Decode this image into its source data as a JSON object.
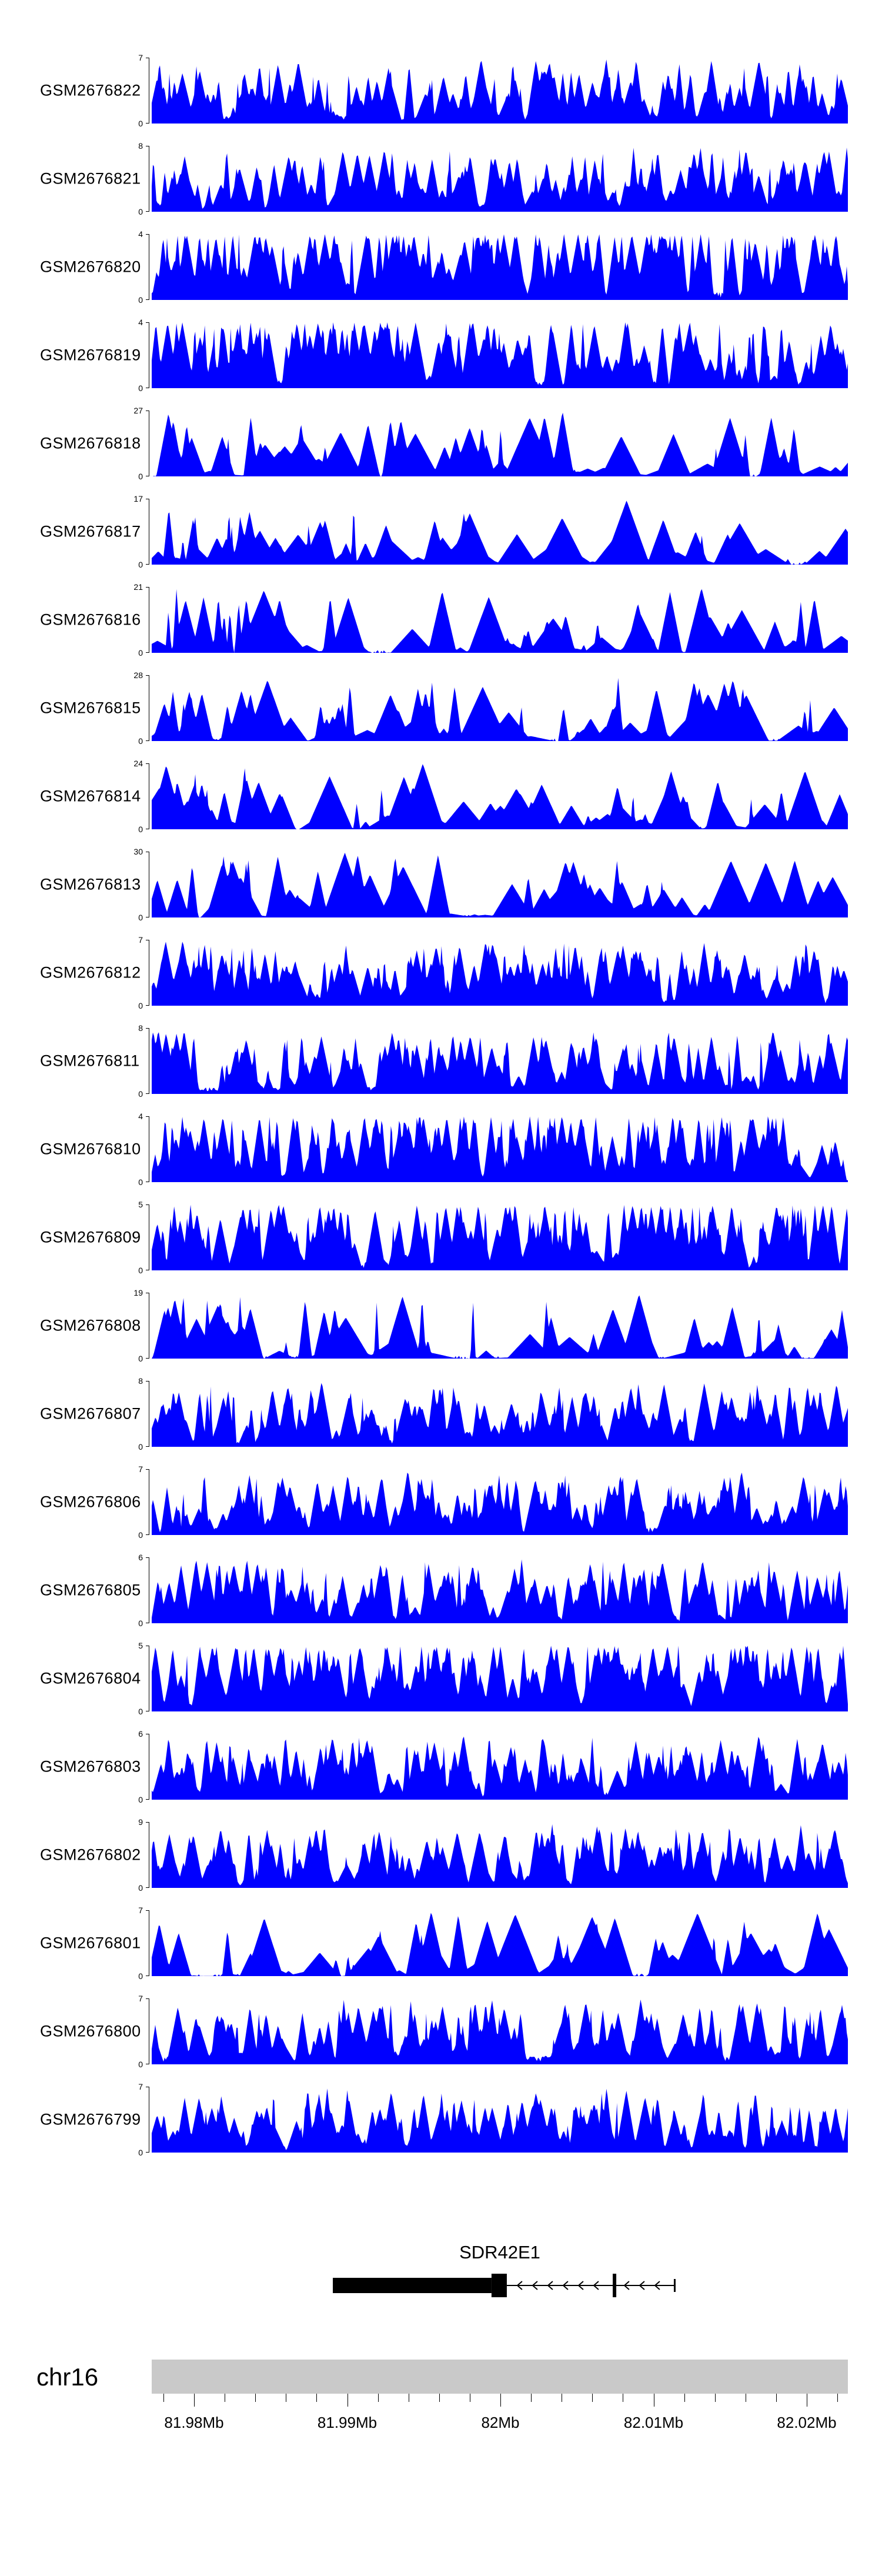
{
  "chart_data": {
    "type": "area",
    "title": "",
    "description_style": "stacked genome coverage tracks (filled blue area per sample) over chr16 with gene model and ruler",
    "colors": {
      "signal": "#0000ff",
      "ideogram": "#c9c9c9",
      "gene": "#000000"
    },
    "x_axis": {
      "unit": "Mb",
      "range_mb": [
        81.9772,
        82.0227
      ],
      "major_ticks": [
        {
          "label": "81.98Mb",
          "mb": 81.98
        },
        {
          "label": "81.99Mb",
          "mb": 81.99
        },
        {
          "label": "82Mb",
          "mb": 82.0
        },
        {
          "label": "82.01Mb",
          "mb": 82.01
        },
        {
          "label": "82.02Mb",
          "mb": 82.02
        }
      ],
      "minor_tick_interval_mb": 0.002,
      "minor_tick_range_mb": [
        81.978,
        82.022
      ]
    },
    "tracks": [
      {
        "name": "GSM2676822",
        "ymin": 0,
        "ymax": 7,
        "style": "dense",
        "left_cluster": false,
        "seed": 11
      },
      {
        "name": "GSM2676821",
        "ymin": 0,
        "ymax": 8,
        "style": "dense",
        "left_cluster": false,
        "seed": 22
      },
      {
        "name": "GSM2676820",
        "ymin": 0,
        "ymax": 4,
        "style": "dense",
        "left_cluster": false,
        "seed": 33
      },
      {
        "name": "GSM2676819",
        "ymin": 0,
        "ymax": 4,
        "style": "dense",
        "left_cluster": false,
        "seed": 44
      },
      {
        "name": "GSM2676818",
        "ymin": 0,
        "ymax": 27,
        "style": "peaks",
        "left_cluster": true,
        "seed": 55
      },
      {
        "name": "GSM2676817",
        "ymin": 0,
        "ymax": 17,
        "style": "peaks",
        "left_cluster": true,
        "seed": 66
      },
      {
        "name": "GSM2676816",
        "ymin": 0,
        "ymax": 21,
        "style": "peaks",
        "left_cluster": true,
        "seed": 77
      },
      {
        "name": "GSM2676815",
        "ymin": 0,
        "ymax": 28,
        "style": "peaks",
        "left_cluster": true,
        "seed": 88
      },
      {
        "name": "GSM2676814",
        "ymin": 0,
        "ymax": 24,
        "style": "peaks",
        "left_cluster": true,
        "seed": 99
      },
      {
        "name": "GSM2676813",
        "ymin": 0,
        "ymax": 30,
        "style": "peaks",
        "left_cluster": true,
        "seed": 110
      },
      {
        "name": "GSM2676812",
        "ymin": 0,
        "ymax": 7,
        "style": "dense",
        "left_cluster": true,
        "seed": 121
      },
      {
        "name": "GSM2676811",
        "ymin": 0,
        "ymax": 8,
        "style": "dense",
        "left_cluster": false,
        "seed": 132
      },
      {
        "name": "GSM2676810",
        "ymin": 0,
        "ymax": 4,
        "style": "dense",
        "left_cluster": false,
        "seed": 143
      },
      {
        "name": "GSM2676809",
        "ymin": 0,
        "ymax": 5,
        "style": "dense",
        "left_cluster": false,
        "seed": 154
      },
      {
        "name": "GSM2676808",
        "ymin": 0,
        "ymax": 19,
        "style": "peaks",
        "left_cluster": true,
        "seed": 165
      },
      {
        "name": "GSM2676807",
        "ymin": 0,
        "ymax": 8,
        "style": "dense",
        "left_cluster": false,
        "seed": 176
      },
      {
        "name": "GSM2676806",
        "ymin": 0,
        "ymax": 7,
        "style": "dense",
        "left_cluster": false,
        "seed": 187
      },
      {
        "name": "GSM2676805",
        "ymin": 0,
        "ymax": 6,
        "style": "dense",
        "left_cluster": false,
        "seed": 198
      },
      {
        "name": "GSM2676804",
        "ymin": 0,
        "ymax": 5,
        "style": "dense",
        "left_cluster": false,
        "seed": 209
      },
      {
        "name": "GSM2676803",
        "ymin": 0,
        "ymax": 6,
        "style": "dense",
        "left_cluster": false,
        "seed": 220
      },
      {
        "name": "GSM2676802",
        "ymin": 0,
        "ymax": 9,
        "style": "dense",
        "left_cluster": false,
        "seed": 231
      },
      {
        "name": "GSM2676801",
        "ymin": 0,
        "ymax": 7,
        "style": "peaks",
        "left_cluster": false,
        "seed": 242
      },
      {
        "name": "GSM2676800",
        "ymin": 0,
        "ymax": 7,
        "style": "dense",
        "left_cluster": false,
        "seed": 253
      },
      {
        "name": "GSM2676799",
        "ymin": 0,
        "ymax": 7,
        "style": "dense",
        "left_cluster": false,
        "seed": 264
      }
    ],
    "gene_track": {
      "name": "SDR42E1",
      "strand": "-",
      "thick_exon_mb": [
        81.98906,
        81.99942
      ],
      "tall_exon_mb": [
        81.99942,
        82.00042
      ],
      "intron_line_end_mb": 82.0114,
      "inner_exon_tick_mb": 82.00745
    },
    "chromosome": {
      "label": "chr16"
    }
  }
}
